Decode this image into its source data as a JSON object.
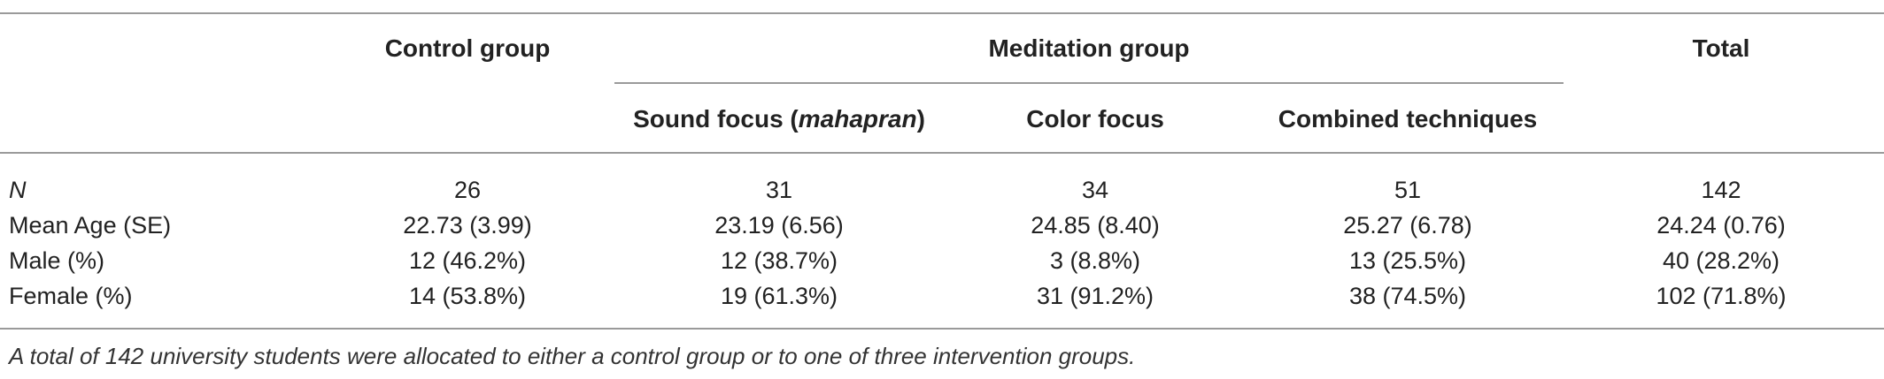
{
  "table": {
    "headers": {
      "control": "Control group",
      "meditation": "Meditation group",
      "total": "Total",
      "sound_prefix": "Sound focus (",
      "sound_italic": "mahapran",
      "sound_suffix": ")",
      "color": "Color focus",
      "combined": "Combined techniques"
    },
    "rows": [
      {
        "label": "N",
        "values": [
          "26",
          "31",
          "34",
          "51",
          "142"
        ]
      },
      {
        "label": "Mean Age (SE)",
        "values": [
          "22.73 (3.99)",
          "23.19 (6.56)",
          "24.85 (8.40)",
          "25.27 (6.78)",
          "24.24 (0.76)"
        ]
      },
      {
        "label": "Male (%)",
        "values": [
          "12 (46.2%)",
          "12 (38.7%)",
          "3 (8.8%)",
          "13 (25.5%)",
          "40 (28.2%)"
        ]
      },
      {
        "label": "Female (%)",
        "values": [
          "14 (53.8%)",
          "19 (61.3%)",
          "31 (91.2%)",
          "38 (74.5%)",
          "102 (71.8%)"
        ]
      }
    ],
    "caption": "A total of 142 university students were allocated to either a control group or to one of three intervention groups."
  }
}
